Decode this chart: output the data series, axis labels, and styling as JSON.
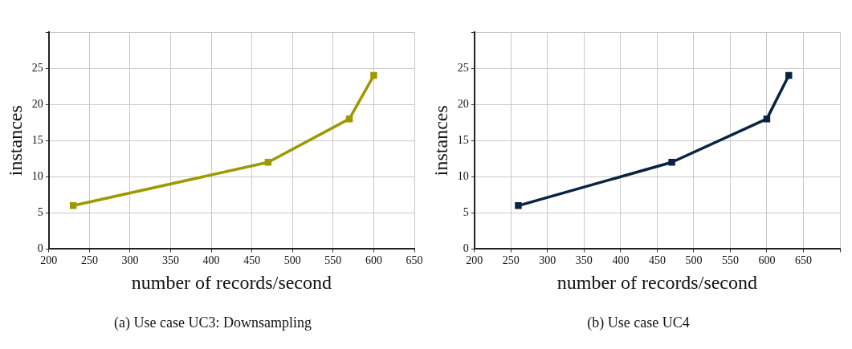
{
  "chart_data": [
    {
      "type": "line",
      "title": "(a) Use case UC3: Downsampling",
      "xlabel": "number of records/second",
      "ylabel": "instances",
      "x": [
        230,
        470,
        570,
        600
      ],
      "series": [
        {
          "color": "#9c9a00",
          "values": [
            6,
            12,
            18,
            24
          ]
        }
      ],
      "xlim": [
        200,
        650
      ],
      "xticks": [
        200,
        250,
        300,
        350,
        400,
        450,
        500,
        550,
        600,
        650
      ],
      "ylim": [
        0,
        30
      ],
      "yticks": [
        0,
        5,
        10,
        15,
        20,
        25,
        {
          "value": 30,
          "label": null
        }
      ],
      "grid": true,
      "legend": false,
      "marker": "square",
      "line_style": "solid"
    },
    {
      "type": "line",
      "title": "(b) Use case UC4",
      "xlabel": "number of records/second",
      "ylabel": "instances",
      "x": [
        260,
        470,
        600,
        630
      ],
      "series": [
        {
          "color": "#0a2340",
          "values": [
            6,
            12,
            18,
            24
          ]
        }
      ],
      "xlim": [
        200,
        700
      ],
      "xticks": [
        200,
        250,
        300,
        350,
        400,
        450,
        500,
        550,
        600,
        650,
        {
          "value": 700,
          "label": null
        }
      ],
      "ylim": [
        0,
        30
      ],
      "yticks": [
        0,
        5,
        10,
        15,
        20,
        25,
        {
          "value": 30,
          "label": null
        }
      ],
      "grid": true,
      "legend": false,
      "marker": "square",
      "line_style": "solid"
    }
  ]
}
